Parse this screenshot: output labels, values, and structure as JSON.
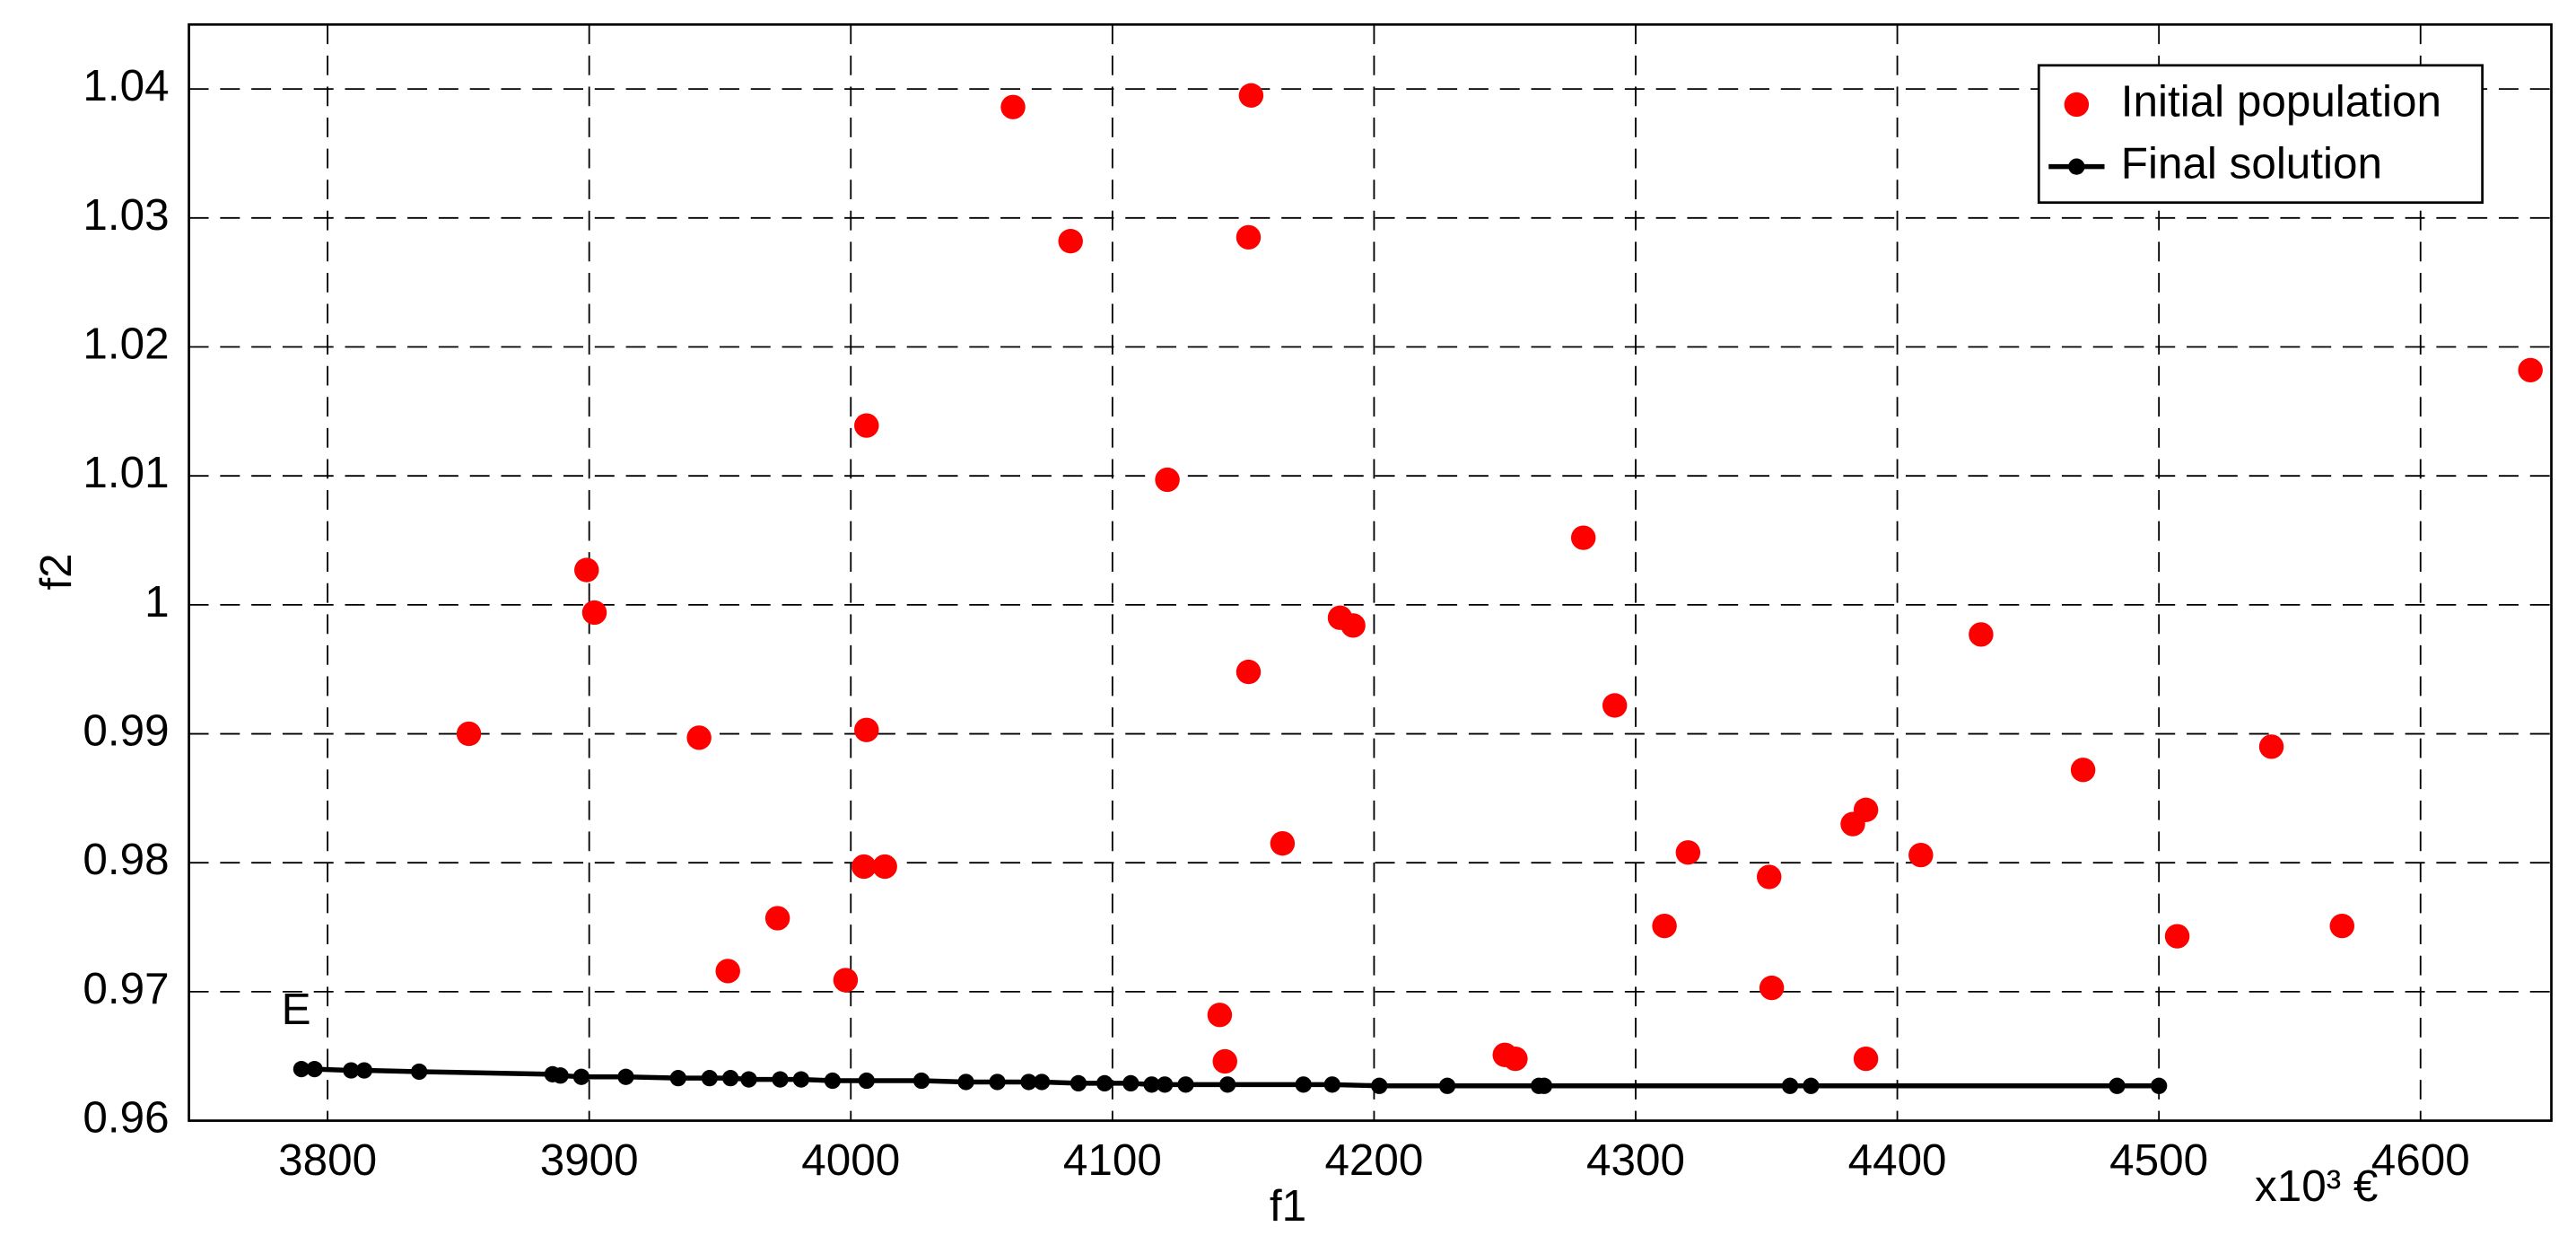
{
  "chart_data": {
    "type": "scatter",
    "x_label": "f1",
    "y_label": "f2",
    "x_unit": "x10³ €",
    "xlim": [
      3747,
      4650
    ],
    "ylim": [
      0.96,
      1.045
    ],
    "xticks": [
      3800,
      3900,
      4000,
      4100,
      4200,
      4300,
      4400,
      4500,
      4600
    ],
    "yticks": [
      0.96,
      0.97,
      0.98,
      0.99,
      1,
      1.01,
      1.02,
      1.03,
      1.04
    ],
    "grid": true,
    "legend": "upper right",
    "annotations": [
      {
        "text": "E",
        "x": 3788,
        "y": 0.9684
      }
    ],
    "series": [
      {
        "name": "Initial population",
        "color": "#ff0000",
        "line": false,
        "x": [
          3854,
          3899,
          3902,
          3942,
          3953,
          3972,
          3998,
          4005,
          4006,
          4006,
          4013,
          4062,
          4084,
          4121,
          4141,
          4143,
          4152,
          4152,
          4153,
          4165,
          4187,
          4192,
          4250,
          4254,
          4280,
          4292,
          4311,
          4320,
          4351,
          4352,
          4383,
          4388,
          4388,
          4409,
          4432,
          4471,
          4507,
          4543,
          4570,
          4642
        ],
        "values": [
          0.99,
          1.0027,
          0.9994,
          0.9897,
          0.9716,
          0.9757,
          0.9709,
          0.9797,
          0.9903,
          1.0139,
          0.9797,
          1.0386,
          1.0282,
          1.0097,
          0.9682,
          0.9646,
          0.9948,
          1.0285,
          1.0395,
          0.9815,
          0.999,
          0.9984,
          0.9651,
          0.9648,
          1.0052,
          0.9922,
          0.9751,
          0.9808,
          0.9789,
          0.9703,
          0.983,
          0.9841,
          0.9648,
          0.9806,
          0.9977,
          0.9872,
          0.9743,
          0.989,
          0.9751,
          1.0182
        ]
      },
      {
        "name": "Final solution",
        "color": "#000000",
        "line": true,
        "x": [
          3790,
          3795,
          3809,
          3814,
          3835,
          3886,
          3889,
          3897,
          3914,
          3934,
          3946,
          3954,
          3961,
          3973,
          3981,
          3993,
          4006,
          4027,
          4044,
          4056,
          4068,
          4073,
          4087,
          4097,
          4107,
          4115,
          4120,
          4128,
          4144,
          4173,
          4184,
          4202,
          4228,
          4263,
          4265,
          4359,
          4367,
          4484,
          4500
        ],
        "values": [
          0.964,
          0.964,
          0.9639,
          0.9639,
          0.9638,
          0.9636,
          0.9635,
          0.9634,
          0.9634,
          0.9633,
          0.9633,
          0.9633,
          0.9632,
          0.9632,
          0.9632,
          0.9631,
          0.9631,
          0.9631,
          0.963,
          0.963,
          0.963,
          0.963,
          0.9629,
          0.9629,
          0.9629,
          0.9628,
          0.9628,
          0.9628,
          0.9628,
          0.9628,
          0.9628,
          0.9627,
          0.9627,
          0.9627,
          0.9627,
          0.9627,
          0.9627,
          0.9627,
          0.9627
        ]
      }
    ]
  }
}
